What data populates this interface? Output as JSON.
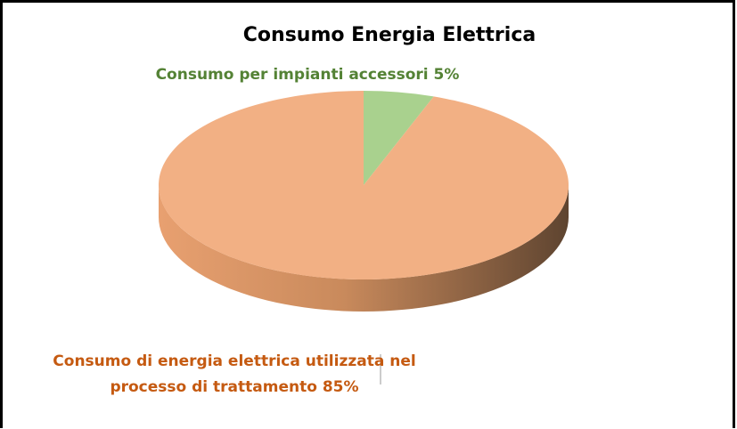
{
  "chart_data": {
    "type": "pie3d",
    "title": "Consumo Energia Elettrica",
    "categories": [
      "Consumo per impianti accessori",
      "Consumo di energia elettrica utilizzata nel processo di trattamento"
    ],
    "values": [
      5,
      85
    ],
    "value_labels": [
      "5%",
      "85%"
    ],
    "colors": [
      "#a9d18e",
      "#f2b084"
    ],
    "label_colors": [
      "#548235",
      "#c55a11"
    ]
  }
}
